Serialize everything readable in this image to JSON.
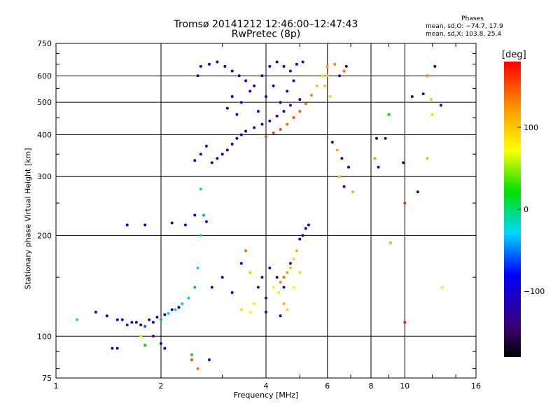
{
  "header": {
    "title": "Tromsø 20141212 12:46:00–12:47:43",
    "subtitle": "RwPretec (8p)"
  },
  "stats": {
    "heading": "Phases",
    "o_line": "mean, sd,O: −74.7, 17.9",
    "x_line": "mean, sd,X: 103.8, 25.4"
  },
  "colorbar": {
    "unit": "[deg]",
    "ticks": [
      {
        "value": 100,
        "label": "100"
      },
      {
        "value": 0,
        "label": "0"
      },
      {
        "value": -100,
        "label": "−100"
      }
    ],
    "range": [
      -180,
      180
    ]
  },
  "chart_data": {
    "type": "scatter",
    "title": "Tromsø 20141212 12:46:00–12:47:43",
    "subtitle": "RwPretec (8p)",
    "xlabel": "Frequency [MHz]",
    "ylabel": "Stationary phase Virtual Height [km]",
    "xscale": "log",
    "yscale": "log",
    "xlim": [
      1,
      16
    ],
    "ylim": [
      75,
      750
    ],
    "xticks": [
      {
        "value": 1,
        "label": "1"
      },
      {
        "value": 2,
        "label": "2"
      },
      {
        "value": 4,
        "label": "4"
      },
      {
        "value": 6,
        "label": "6"
      },
      {
        "value": 8,
        "label": "8"
      },
      {
        "value": 10,
        "label": "10"
      },
      {
        "value": 16,
        "label": "16"
      }
    ],
    "yticks": [
      {
        "value": 75,
        "label": "75"
      },
      {
        "value": 100,
        "label": "100"
      },
      {
        "value": 200,
        "label": "200"
      },
      {
        "value": 300,
        "label": "300"
      },
      {
        "value": 400,
        "label": "400"
      },
      {
        "value": 500,
        "label": "500"
      },
      {
        "value": 600,
        "label": "600"
      },
      {
        "value": 750,
        "label": "750"
      }
    ],
    "grid": true,
    "color_scale": "rainbow (black → purple → blue → cyan → green → yellow → orange → red)",
    "points": [
      [
        2.5,
        335,
        -100
      ],
      [
        2.6,
        350,
        -110
      ],
      [
        2.7,
        370,
        -95
      ],
      [
        2.8,
        330,
        -100
      ],
      [
        2.9,
        340,
        -105
      ],
      [
        3.0,
        350,
        -100
      ],
      [
        3.1,
        360,
        -110
      ],
      [
        3.2,
        375,
        -100
      ],
      [
        3.3,
        390,
        -95
      ],
      [
        3.4,
        400,
        -110
      ],
      [
        3.5,
        410,
        -100
      ],
      [
        3.7,
        420,
        -105
      ],
      [
        3.9,
        430,
        -100
      ],
      [
        4.1,
        440,
        -110
      ],
      [
        4.3,
        455,
        -100
      ],
      [
        4.5,
        470,
        -95
      ],
      [
        4.7,
        490,
        -100
      ],
      [
        5.0,
        510,
        -110
      ],
      [
        2.55,
        600,
        -100
      ],
      [
        2.6,
        640,
        -105
      ],
      [
        2.75,
        650,
        -90
      ],
      [
        2.9,
        660,
        -100
      ],
      [
        3.05,
        640,
        -110
      ],
      [
        3.2,
        620,
        -100
      ],
      [
        3.35,
        600,
        -95
      ],
      [
        3.5,
        580,
        -100
      ],
      [
        3.7,
        560,
        -110
      ],
      [
        3.9,
        600,
        -100
      ],
      [
        4.1,
        640,
        -110
      ],
      [
        4.3,
        660,
        -105
      ],
      [
        4.5,
        640,
        -100
      ],
      [
        4.7,
        620,
        -110
      ],
      [
        4.9,
        650,
        -95
      ],
      [
        5.1,
        660,
        -100
      ],
      [
        3.1,
        480,
        -100
      ],
      [
        3.2,
        520,
        -95
      ],
      [
        3.3,
        460,
        -110
      ],
      [
        3.4,
        500,
        -100
      ],
      [
        3.6,
        540,
        -105
      ],
      [
        3.8,
        470,
        -100
      ],
      [
        4.0,
        520,
        -110
      ],
      [
        4.2,
        560,
        -100
      ],
      [
        4.4,
        500,
        -95
      ],
      [
        4.6,
        540,
        -100
      ],
      [
        4.8,
        580,
        -110
      ],
      [
        4.0,
        395,
        150
      ],
      [
        4.2,
        405,
        155
      ],
      [
        4.4,
        415,
        150
      ],
      [
        4.6,
        430,
        140
      ],
      [
        4.8,
        450,
        150
      ],
      [
        5.0,
        470,
        145
      ],
      [
        5.2,
        495,
        140
      ],
      [
        5.4,
        525,
        130
      ],
      [
        5.6,
        560,
        100
      ],
      [
        5.8,
        600,
        90
      ],
      [
        6.0,
        640,
        120
      ],
      [
        5.9,
        560,
        100
      ],
      [
        6.0,
        600,
        110
      ],
      [
        6.1,
        520,
        60
      ],
      [
        6.3,
        650,
        130
      ],
      [
        6.5,
        600,
        -100
      ],
      [
        6.7,
        620,
        140
      ],
      [
        6.8,
        640,
        -110
      ],
      [
        6.2,
        380,
        -140
      ],
      [
        6.4,
        360,
        110
      ],
      [
        6.6,
        340,
        -120
      ],
      [
        6.5,
        300,
        100
      ],
      [
        6.7,
        280,
        -100
      ],
      [
        7.1,
        270,
        110
      ],
      [
        6.9,
        320,
        -130
      ],
      [
        8.2,
        340,
        120
      ],
      [
        8.4,
        320,
        -110
      ],
      [
        8.3,
        390,
        -150
      ],
      [
        8.8,
        390,
        -120
      ],
      [
        9.0,
        460,
        20
      ],
      [
        9.1,
        190,
        110
      ],
      [
        9.9,
        330,
        -130
      ],
      [
        10.0,
        250,
        160
      ],
      [
        10.0,
        110,
        170
      ],
      [
        10.5,
        520,
        -110
      ],
      [
        10.9,
        270,
        -140
      ],
      [
        11.3,
        530,
        -100
      ],
      [
        11.6,
        600,
        130
      ],
      [
        11.9,
        510,
        100
      ],
      [
        12.0,
        460,
        90
      ],
      [
        12.2,
        640,
        -120
      ],
      [
        12.7,
        490,
        -90
      ],
      [
        12.8,
        140,
        80
      ],
      [
        11.6,
        340,
        110
      ],
      [
        1.15,
        112,
        -20
      ],
      [
        1.3,
        118,
        -100
      ],
      [
        1.4,
        115,
        -90
      ],
      [
        1.45,
        92,
        -110
      ],
      [
        1.5,
        112,
        -80
      ],
      [
        1.6,
        108,
        -70
      ],
      [
        1.7,
        110,
        -100
      ],
      [
        1.8,
        107,
        -60
      ],
      [
        1.9,
        110,
        -90
      ],
      [
        2.0,
        112,
        -40
      ],
      [
        2.1,
        117,
        -20
      ],
      [
        2.2,
        120,
        -30
      ],
      [
        2.3,
        125,
        -10
      ],
      [
        2.4,
        130,
        -30
      ],
      [
        2.5,
        140,
        -40
      ],
      [
        2.55,
        160,
        -30
      ],
      [
        2.6,
        200,
        -20
      ],
      [
        2.65,
        230,
        -40
      ],
      [
        2.6,
        275,
        -20
      ],
      [
        1.55,
        112,
        -100
      ],
      [
        1.65,
        110,
        -90
      ],
      [
        1.75,
        108,
        -110
      ],
      [
        1.85,
        112,
        -80
      ],
      [
        1.95,
        114,
        -100
      ],
      [
        2.05,
        116,
        -90
      ],
      [
        2.15,
        120,
        -100
      ],
      [
        2.25,
        122,
        -80
      ],
      [
        1.6,
        215,
        -100
      ],
      [
        1.8,
        215,
        -110
      ],
      [
        2.15,
        218,
        -90
      ],
      [
        2.35,
        215,
        -100
      ],
      [
        2.5,
        230,
        -90
      ],
      [
        2.7,
        220,
        -100
      ],
      [
        2.0,
        95,
        -100
      ],
      [
        1.9,
        100,
        -110
      ],
      [
        2.05,
        92,
        -90
      ],
      [
        1.75,
        100,
        60
      ],
      [
        1.8,
        94,
        20
      ],
      [
        2.45,
        88,
        20
      ],
      [
        2.55,
        80,
        140
      ],
      [
        2.45,
        85,
        150
      ],
      [
        2.75,
        85,
        -100
      ],
      [
        1.5,
        92,
        -120
      ],
      [
        2.8,
        140,
        -100
      ],
      [
        3.0,
        150,
        -90
      ],
      [
        3.2,
        135,
        -110
      ],
      [
        3.4,
        165,
        -100
      ],
      [
        3.5,
        180,
        140
      ],
      [
        3.6,
        155,
        100
      ],
      [
        3.7,
        125,
        80
      ],
      [
        3.8,
        140,
        -110
      ],
      [
        3.9,
        150,
        -90
      ],
      [
        4.0,
        130,
        -100
      ],
      [
        4.1,
        160,
        -110
      ],
      [
        4.3,
        150,
        -100
      ],
      [
        4.5,
        140,
        -90
      ],
      [
        4.7,
        165,
        -100
      ],
      [
        4.4,
        145,
        130
      ],
      [
        4.5,
        150,
        140
      ],
      [
        4.6,
        155,
        120
      ],
      [
        4.7,
        160,
        100
      ],
      [
        4.8,
        170,
        90
      ],
      [
        4.9,
        180,
        110
      ],
      [
        5.0,
        195,
        -100
      ],
      [
        5.1,
        200,
        -110
      ],
      [
        5.2,
        210,
        -100
      ],
      [
        5.3,
        215,
        -90
      ],
      [
        4.2,
        140,
        70
      ],
      [
        4.35,
        135,
        80
      ],
      [
        4.5,
        125,
        110
      ],
      [
        4.6,
        120,
        90
      ],
      [
        4.8,
        140,
        70
      ],
      [
        5.0,
        155,
        60
      ],
      [
        3.4,
        120,
        90
      ],
      [
        3.6,
        118,
        70
      ],
      [
        4.0,
        118,
        -100
      ],
      [
        4.4,
        115,
        -110
      ]
    ]
  }
}
